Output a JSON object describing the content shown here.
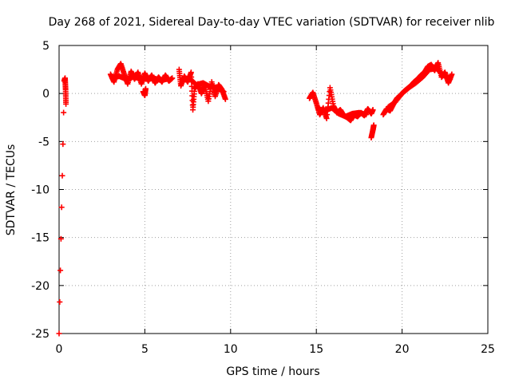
{
  "chart_data": {
    "type": "scatter",
    "title": "Day 268 of 2021, Sidereal Day-to-day VTEC variation (SDTVAR) for receiver nlib",
    "xlabel": "GPS time / hours",
    "ylabel": "SDTVAR / TECUs",
    "xlim": [
      0,
      25
    ],
    "ylim": [
      -25,
      5
    ],
    "xticks": [
      0,
      5,
      10,
      15,
      20,
      25
    ],
    "yticks": [
      -25,
      -20,
      -15,
      -10,
      -5,
      0,
      5
    ],
    "xtick_labels": [
      "0",
      "5",
      "10",
      "15",
      "20",
      "25"
    ],
    "ytick_labels": [
      "-25",
      "-20",
      "-15",
      "-10",
      "-5",
      "0",
      "5"
    ],
    "grid": true,
    "marker": "plus",
    "color": "#ff0000",
    "series": [
      {
        "name": "SDTVAR",
        "x": [
          0.0,
          0.3,
          0.35,
          0.38,
          0.4
        ],
        "y": [
          -25.0,
          1.3,
          1.6,
          0.4,
          -1.1
        ]
      },
      {
        "name": "SDTVAR",
        "x": [
          3.0,
          3.2,
          3.4,
          3.6,
          3.8,
          4.0,
          4.2,
          4.4,
          4.6,
          4.8,
          5.0,
          5.2,
          5.4,
          5.6,
          5.8,
          6.0,
          6.2,
          6.4,
          6.6
        ],
        "y": [
          2.0,
          1.2,
          2.5,
          3.1,
          2.0,
          1.0,
          2.3,
          1.5,
          2.2,
          1.0,
          2.1,
          1.3,
          1.9,
          1.1,
          1.7,
          1.2,
          1.9,
          1.3,
          1.6
        ]
      },
      {
        "name": "SDTVAR",
        "x": [
          3.1,
          3.5,
          3.9,
          4.3,
          4.7,
          5.1,
          5.5,
          5.9,
          6.3
        ],
        "y": [
          1.6,
          1.8,
          1.5,
          1.7,
          1.6,
          1.5,
          1.6,
          1.4,
          1.5
        ]
      },
      {
        "name": "SDTVAR",
        "x": [
          4.9,
          5.0,
          5.05
        ],
        "y": [
          0.2,
          -0.2,
          0.5
        ]
      },
      {
        "name": "SDTVAR",
        "x": [
          7.0,
          7.1,
          7.3,
          7.5,
          7.7,
          7.8,
          7.9,
          8.1,
          8.3,
          8.5,
          8.7,
          8.9,
          9.1,
          9.3,
          9.5,
          9.7
        ],
        "y": [
          2.5,
          0.8,
          1.8,
          1.2,
          2.2,
          -1.7,
          0.5,
          1.0,
          0.0,
          0.8,
          -0.8,
          1.2,
          -0.3,
          0.9,
          0.4,
          -0.6
        ]
      },
      {
        "name": "SDTVAR",
        "x": [
          7.2,
          7.6,
          8.0,
          8.4,
          8.8,
          9.2,
          9.6
        ],
        "y": [
          1.4,
          1.6,
          0.9,
          1.1,
          0.7,
          0.6,
          0.2
        ]
      },
      {
        "name": "SDTVAR",
        "x": [
          14.6,
          14.8,
          15.0,
          15.2,
          15.4,
          15.6,
          15.8,
          16.0,
          16.2,
          16.4,
          16.6,
          16.8,
          17.0,
          17.2,
          17.4,
          17.6,
          17.8,
          18.0,
          18.2,
          18.3
        ],
        "y": [
          -0.5,
          0.1,
          -1.0,
          -2.2,
          -1.5,
          -2.6,
          0.6,
          -1.3,
          -2.0,
          -1.7,
          -2.3,
          -2.5,
          -2.8,
          -2.2,
          -2.4,
          -2.0,
          -2.3,
          -1.6,
          -2.1,
          -1.7
        ]
      },
      {
        "name": "SDTVAR",
        "x": [
          15.1,
          15.5,
          15.9,
          16.3,
          16.7,
          17.1,
          17.5,
          17.9
        ],
        "y": [
          -1.6,
          -1.8,
          -1.5,
          -2.1,
          -2.4,
          -2.1,
          -2.0,
          -2.2
        ]
      },
      {
        "name": "SDTVAR",
        "x": [
          18.2,
          18.3,
          18.35
        ],
        "y": [
          -4.6,
          -3.8,
          -3.3
        ]
      },
      {
        "name": "SDTVAR",
        "x": [
          18.9,
          19.1,
          19.3,
          19.5,
          19.7,
          19.9,
          20.1,
          20.3,
          20.5,
          20.7,
          20.9,
          21.1,
          21.3,
          21.5,
          21.7,
          21.9,
          22.1,
          22.3,
          22.5,
          22.7,
          22.9
        ],
        "y": [
          -2.2,
          -1.6,
          -1.8,
          -1.1,
          -0.5,
          -0.2,
          0.2,
          0.5,
          0.8,
          1.2,
          1.5,
          1.9,
          2.2,
          2.8,
          3.0,
          2.4,
          3.2,
          1.7,
          2.2,
          1.1,
          2.0
        ]
      },
      {
        "name": "SDTVAR",
        "x": [
          19.2,
          19.6,
          20.0,
          20.4,
          20.8,
          21.2,
          21.6,
          22.0,
          22.4,
          22.8
        ],
        "y": [
          -1.4,
          -0.9,
          0.0,
          0.6,
          1.1,
          1.7,
          2.5,
          2.6,
          1.9,
          1.5
        ]
      }
    ]
  }
}
